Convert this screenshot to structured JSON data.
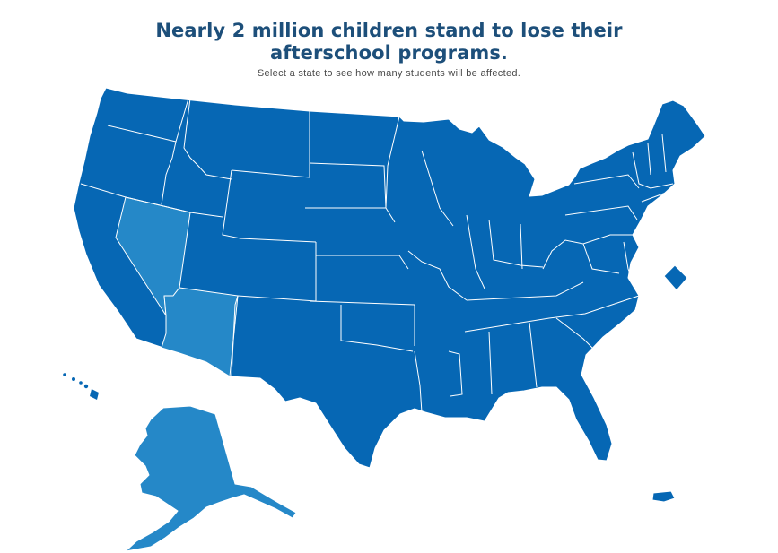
{
  "header": {
    "title": "Nearly 2 million children stand to lose their afterschool programs.",
    "subtitle": "Select a state to see how many students will be affected."
  },
  "colors": {
    "default_state": "#0667b4",
    "highlight_state": "#2588c8",
    "border": "#ffffff",
    "title": "#1d4f7a"
  },
  "highlighted_states": [
    "nevada",
    "arizona",
    "alaska"
  ]
}
